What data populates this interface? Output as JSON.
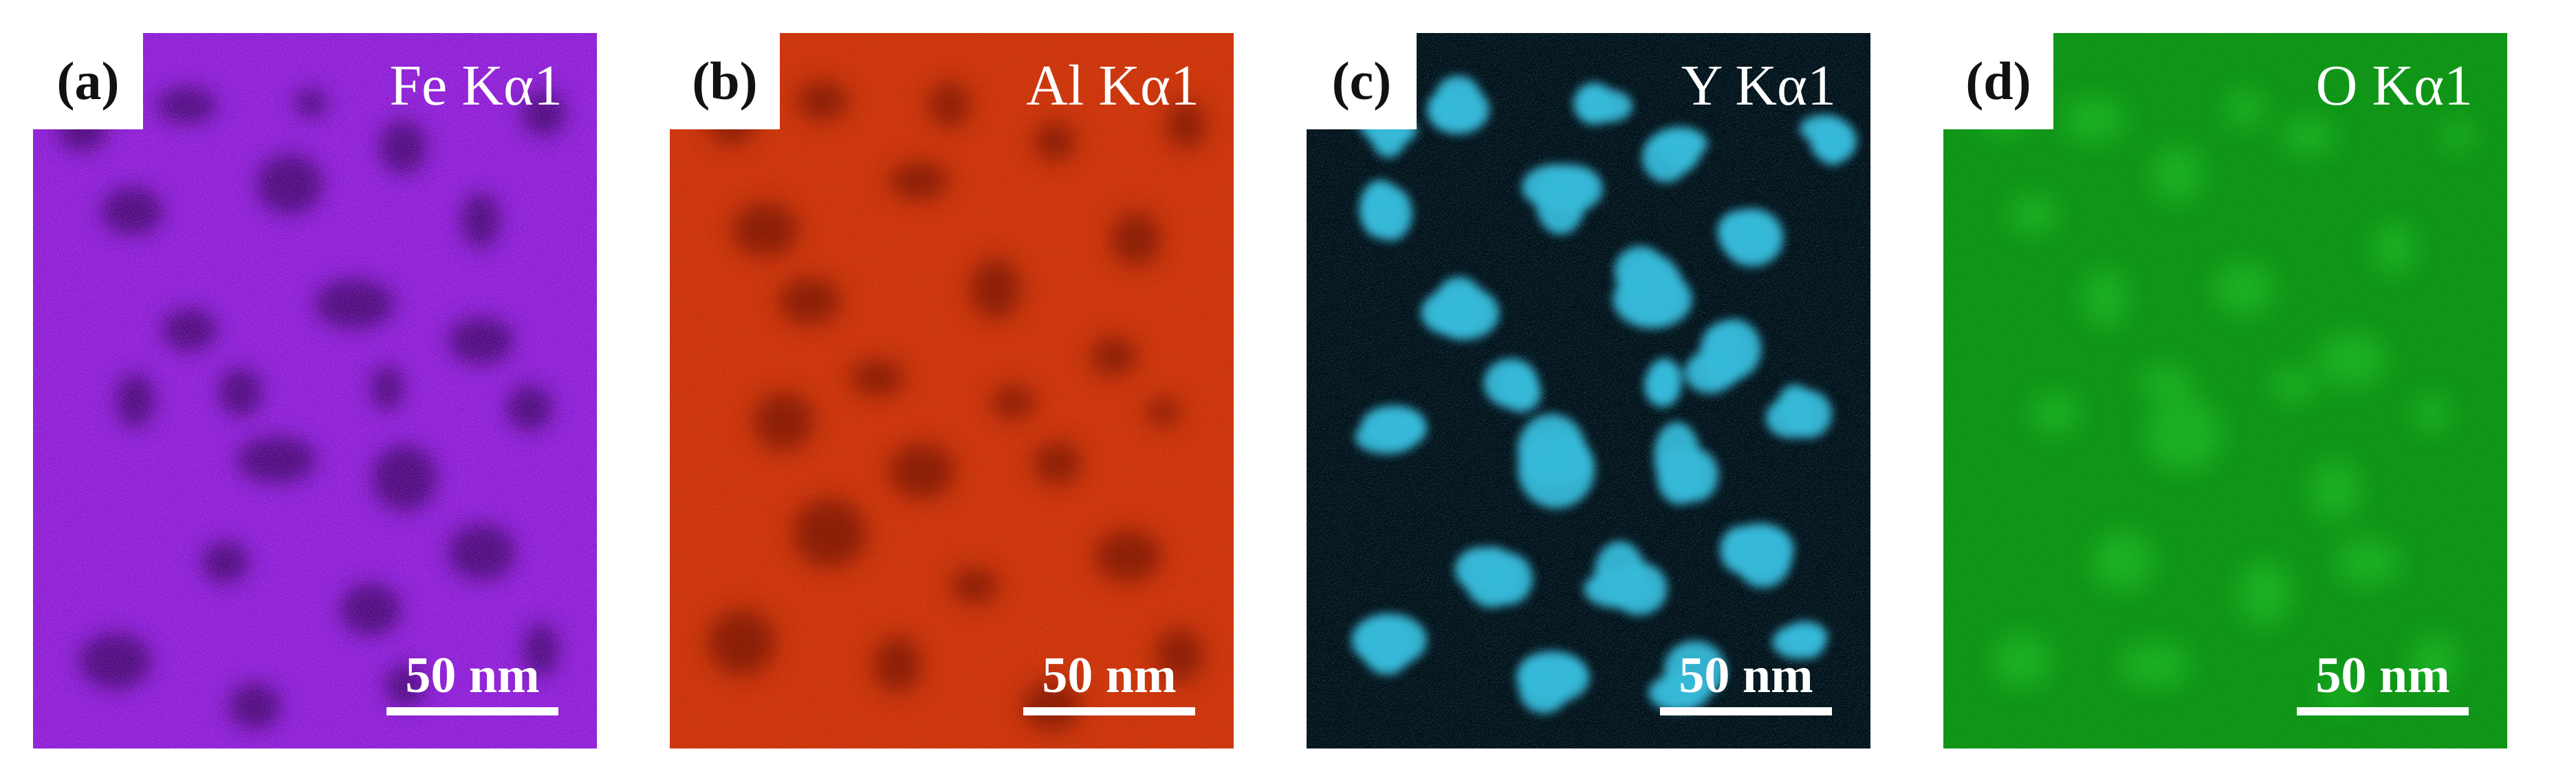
{
  "panels": [
    {
      "id": "a",
      "label": "(a)",
      "element": "Fe Kα1",
      "scale": "50 nm",
      "base_color": "#8f1fd6",
      "spot_color": "#2a0a48",
      "spot_style": "dark"
    },
    {
      "id": "b",
      "label": "(b)",
      "element": "Al Kα1",
      "scale": "50 nm",
      "base_color": "#d83a10",
      "spot_color": "#3a0d05",
      "spot_style": "dark"
    },
    {
      "id": "c",
      "label": "(c)",
      "element": "Y Kα1",
      "scale": "50 nm",
      "base_color": "#04121a",
      "spot_color": "#35b8d8",
      "spot_style": "bright"
    },
    {
      "id": "d",
      "label": "(d)",
      "element": "O Kα1",
      "scale": "50 nm",
      "base_color": "#129a1a",
      "spot_color": "#2fdc3a",
      "spot_style": "bright"
    }
  ]
}
